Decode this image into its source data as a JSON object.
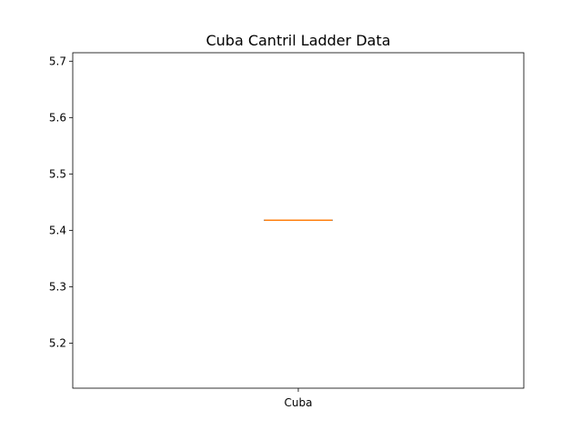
{
  "chart_data": {
    "type": "box",
    "title": "Cuba Cantril Ladder Data",
    "xlabel": "",
    "ylabel": "",
    "categories": [
      "Cuba"
    ],
    "series": [
      {
        "values": [
          {
            "min": 5.418,
            "q1": 5.418,
            "median": 5.418,
            "q3": 5.418,
            "max": 5.418
          }
        ]
      }
    ],
    "ylim": [
      5.12,
      5.715
    ],
    "yticks": [
      5.2,
      5.3,
      5.4,
      5.5,
      5.6,
      5.7
    ],
    "grid": false,
    "colors": {
      "box": "#000000",
      "median": "#ff7f0e"
    }
  }
}
